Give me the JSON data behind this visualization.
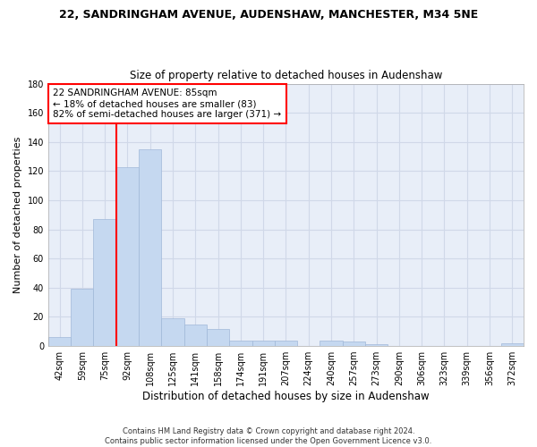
{
  "title1": "22, SANDRINGHAM AVENUE, AUDENSHAW, MANCHESTER, M34 5NE",
  "title2": "Size of property relative to detached houses in Audenshaw",
  "xlabel": "Distribution of detached houses by size in Audenshaw",
  "ylabel": "Number of detached properties",
  "footer1": "Contains HM Land Registry data © Crown copyright and database right 2024.",
  "footer2": "Contains public sector information licensed under the Open Government Licence v3.0.",
  "bin_labels": [
    "42sqm",
    "59sqm",
    "75sqm",
    "92sqm",
    "108sqm",
    "125sqm",
    "141sqm",
    "158sqm",
    "174sqm",
    "191sqm",
    "207sqm",
    "224sqm",
    "240sqm",
    "257sqm",
    "273sqm",
    "290sqm",
    "306sqm",
    "323sqm",
    "339sqm",
    "356sqm",
    "372sqm"
  ],
  "bar_heights": [
    6,
    39,
    87,
    123,
    135,
    19,
    15,
    12,
    4,
    4,
    4,
    0,
    4,
    3,
    1,
    0,
    0,
    0,
    0,
    0,
    2
  ],
  "bar_color": "#c5d8f0",
  "bar_edge_color": "#a0b8d8",
  "grid_color": "#d0d8e8",
  "bg_color": "#e8eef8",
  "property_label": "22 SANDRINGHAM AVENUE: 85sqm",
  "annotation_line1": "← 18% of detached houses are smaller (83)",
  "annotation_line2": "82% of semi-detached houses are larger (371) →",
  "annotation_box_color": "white",
  "annotation_border_color": "red",
  "vline_color": "red",
  "ylim": [
    0,
    180
  ],
  "yticks": [
    0,
    20,
    40,
    60,
    80,
    100,
    120,
    140,
    160,
    180
  ]
}
